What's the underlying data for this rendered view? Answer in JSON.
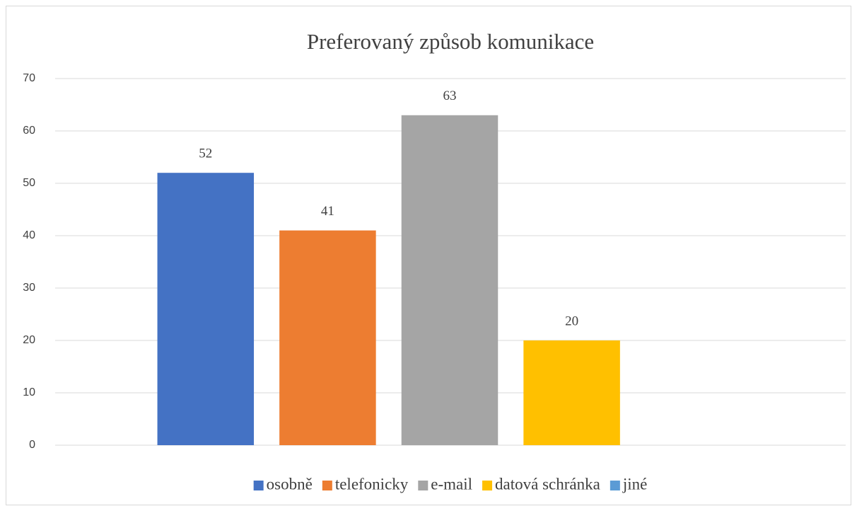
{
  "chart_data": {
    "type": "bar",
    "title": "Preferovaný způsob komunikace",
    "categories": [
      null
    ],
    "series": [
      {
        "name": "osobně",
        "color": "#4472c4",
        "values": [
          52
        ]
      },
      {
        "name": "telefonicky",
        "color": "#ed7d31",
        "values": [
          41
        ]
      },
      {
        "name": "e-mail",
        "color": "#a5a5a5",
        "values": [
          63
        ]
      },
      {
        "name": "datová schránka",
        "color": "#ffc000",
        "values": [
          20
        ]
      },
      {
        "name": "jiné",
        "color": "#5b9bd5",
        "values": [
          null
        ]
      }
    ],
    "ylim": [
      0,
      70
    ],
    "yticks": [
      0,
      10,
      20,
      30,
      40,
      50,
      60,
      70
    ],
    "grid": true,
    "legend": "bottom"
  }
}
